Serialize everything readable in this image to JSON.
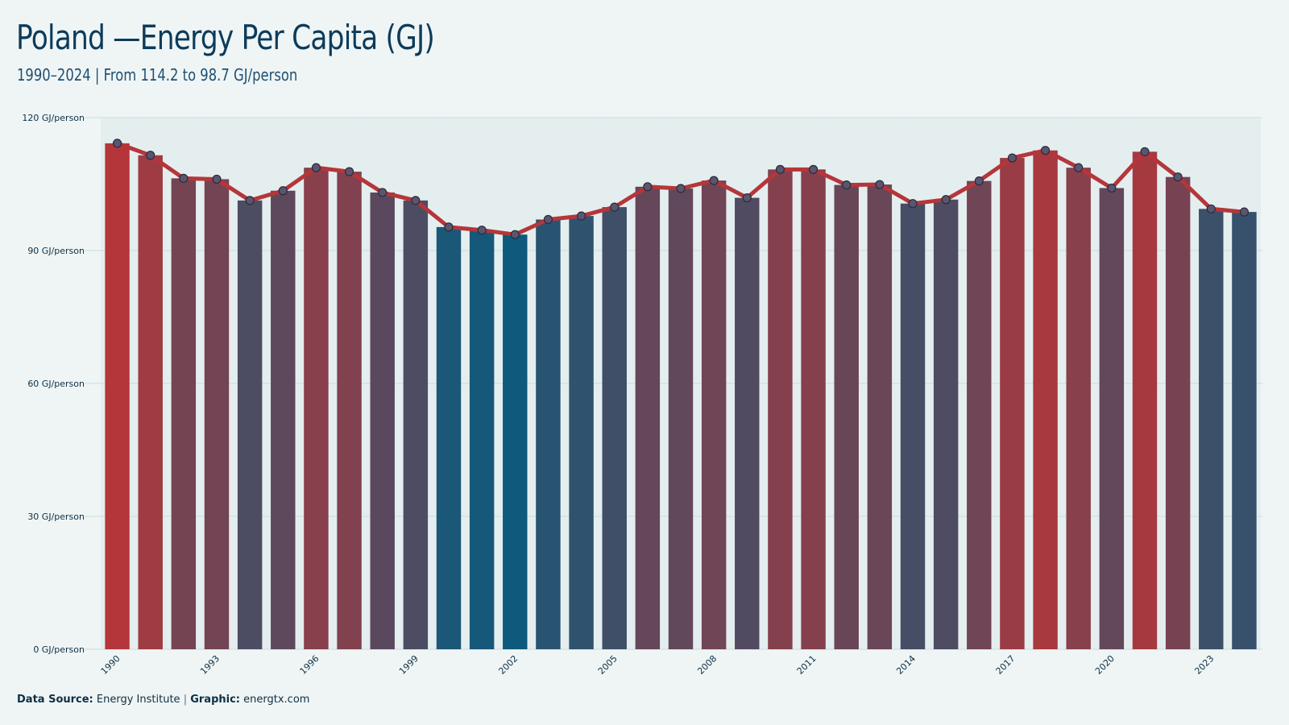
{
  "title": "Poland —Energy Per Capita (GJ)",
  "subtitle": "1990–2024 | From 114.2 to 98.7 GJ/person",
  "footer": {
    "source_label": "Data Source:",
    "source_value": "Energy Institute",
    "separator": "|",
    "graphic_label": "Graphic:",
    "graphic_value": "energtx.com"
  },
  "colors": {
    "high": "#b5363a",
    "low": "#0d5a7c",
    "line": "#b5363a",
    "marker_fill": "#5a5670",
    "marker_stroke": "#2b2a3a",
    "grid": "#c9dcdc",
    "band": "#dde8ea",
    "axis_text": "#0d2f45"
  },
  "chart_data": {
    "type": "bar",
    "overlay": "line with markers",
    "x": [
      1990,
      1991,
      1992,
      1993,
      1994,
      1995,
      1996,
      1997,
      1998,
      1999,
      2000,
      2001,
      2002,
      2003,
      2004,
      2005,
      2006,
      2007,
      2008,
      2009,
      2010,
      2011,
      2012,
      2013,
      2014,
      2015,
      2016,
      2017,
      2018,
      2019,
      2020,
      2021,
      2022,
      2023,
      2024
    ],
    "values": [
      114.2,
      111.5,
      106.3,
      106.1,
      101.3,
      103.5,
      108.7,
      107.8,
      103.1,
      101.3,
      95.3,
      94.6,
      93.6,
      97.0,
      97.8,
      99.8,
      104.4,
      104.0,
      105.8,
      101.9,
      108.3,
      108.3,
      104.8,
      104.9,
      100.6,
      101.5,
      105.7,
      110.9,
      112.6,
      108.7,
      104.1,
      112.3,
      106.6,
      99.4,
      98.7
    ],
    "xtick_labels": [
      "1990",
      "1993",
      "1996",
      "1999",
      "2002",
      "2005",
      "2008",
      "2011",
      "2014",
      "2017",
      "2020",
      "2023"
    ],
    "ytick_labels": [
      "0 GJ/person",
      "30 GJ/person",
      "60 GJ/person",
      "90 GJ/person",
      "120 GJ/person"
    ],
    "yticks": [
      0,
      30,
      60,
      90,
      120
    ],
    "ylim": [
      0,
      120
    ],
    "grid": true,
    "legend": "none"
  }
}
